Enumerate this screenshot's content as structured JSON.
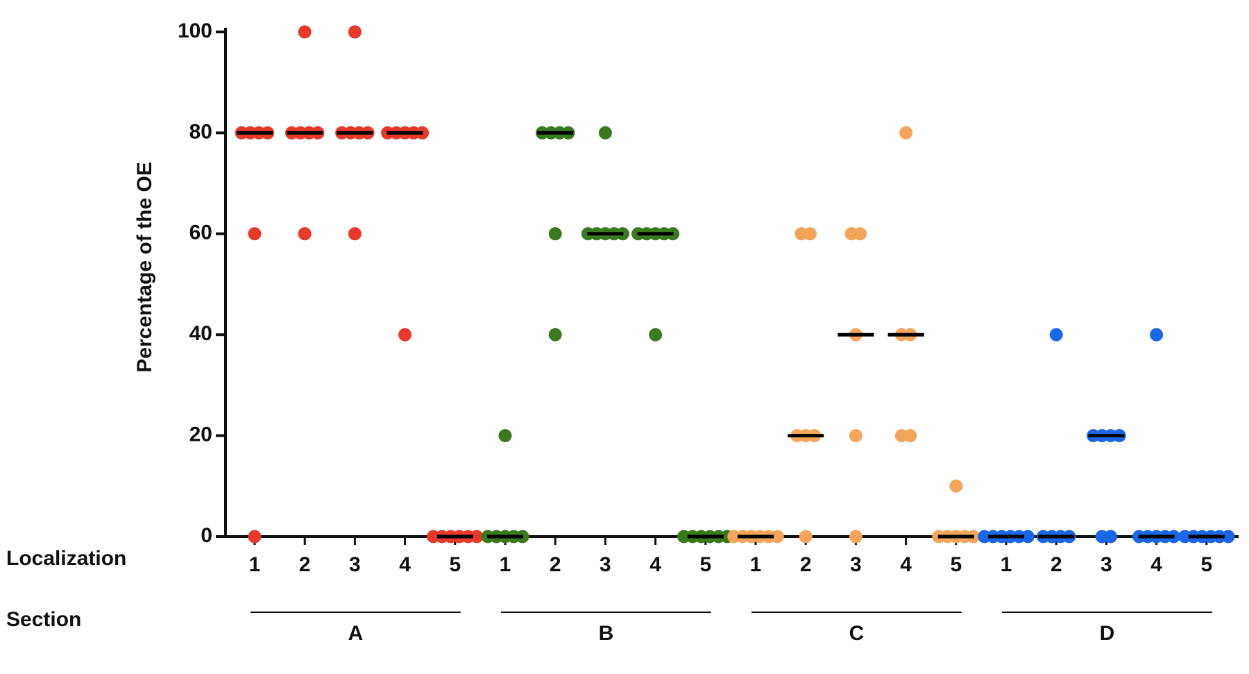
{
  "chart_data": {
    "type": "dot",
    "ylabel": "Percentage of the OE",
    "row_labels": [
      "Localization",
      "Section"
    ],
    "ylim": [
      0,
      100
    ],
    "yticks": [
      0,
      20,
      40,
      60,
      80,
      100
    ],
    "series": [
      {
        "name": "A",
        "color": "#e8392b",
        "groups": [
          {
            "label": "1",
            "values": [
              80,
              80,
              80,
              80,
              60,
              0
            ],
            "median": 80
          },
          {
            "label": "2",
            "values": [
              100,
              80,
              80,
              80,
              80,
              60
            ],
            "median": 80
          },
          {
            "label": "3",
            "values": [
              100,
              80,
              80,
              80,
              80,
              60
            ],
            "median": 80
          },
          {
            "label": "4",
            "values": [
              80,
              80,
              80,
              80,
              80,
              40
            ],
            "median": 80
          },
          {
            "label": "5",
            "values": [
              0,
              0,
              0,
              0,
              0,
              0
            ],
            "median": 0
          }
        ]
      },
      {
        "name": "B",
        "color": "#3a7a1f",
        "groups": [
          {
            "label": "1",
            "values": [
              20,
              0,
              0,
              0,
              0,
              0
            ],
            "median": 0
          },
          {
            "label": "2",
            "values": [
              80,
              80,
              80,
              80,
              60,
              40
            ],
            "median": 80
          },
          {
            "label": "3",
            "values": [
              80,
              60,
              60,
              60,
              60,
              60
            ],
            "median": 60
          },
          {
            "label": "4",
            "values": [
              60,
              60,
              60,
              60,
              60,
              40
            ],
            "median": 60
          },
          {
            "label": "5",
            "values": [
              0,
              0,
              0,
              0,
              0,
              0
            ],
            "median": 0
          }
        ]
      },
      {
        "name": "C",
        "color": "#f5a55a",
        "groups": [
          {
            "label": "1",
            "values": [
              0,
              0,
              0,
              0,
              0,
              0
            ],
            "median": 0
          },
          {
            "label": "2",
            "values": [
              60,
              60,
              20,
              20,
              20,
              0
            ],
            "median": 20
          },
          {
            "label": "3",
            "values": [
              60,
              60,
              40,
              20,
              0
            ],
            "median": 40
          },
          {
            "label": "4",
            "values": [
              80,
              40,
              40,
              20,
              20
            ],
            "median": 40
          },
          {
            "label": "5",
            "values": [
              10,
              0,
              0,
              0,
              0,
              0
            ],
            "median": 0
          }
        ]
      },
      {
        "name": "D",
        "color": "#1a66e8",
        "groups": [
          {
            "label": "1",
            "values": [
              0,
              0,
              0,
              0,
              0,
              0
            ],
            "median": 0
          },
          {
            "label": "2",
            "values": [
              40,
              0,
              0,
              0,
              0
            ],
            "median": 0
          },
          {
            "label": "3",
            "values": [
              20,
              20,
              20,
              20,
              0,
              0
            ],
            "median": 20
          },
          {
            "label": "4",
            "values": [
              40,
              0,
              0,
              0,
              0,
              0
            ],
            "median": 0
          },
          {
            "label": "5",
            "values": [
              0,
              0,
              0,
              0,
              0,
              0
            ],
            "median": 0
          }
        ]
      }
    ]
  }
}
